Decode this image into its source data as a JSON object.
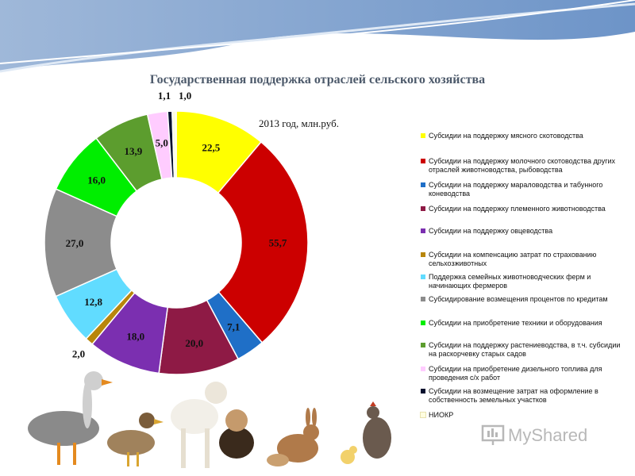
{
  "chart_data": {
    "type": "pie",
    "variant": "donut",
    "title": "Государственная поддержка отраслей сельского хозяйства",
    "subtitle": "2013 год, млн.руб.",
    "legend_position": "right",
    "labels": [
      "Субсидии на поддержку мясного скотоводства",
      "Субсидии на поддержку молочного скотоводства других отраслей животноводства, рыбоводства",
      "Субсидии на поддержку мараловодства и табунного коневодства",
      "Субсидии на поддержку племенного животноводства",
      "Субсидии на поддержку овцеводства",
      "Субсидии на компенсацию затрат по страхованию сельхозживотных",
      "Поддержка семейных животноводческих ферм и начинающих фермеров",
      "Субсидирование возмещения процентов по кредитам",
      "Субсидии на приобретение техники и оборудования",
      "Субсидии на поддержку растениеводства, в т.ч. субсидии на раскорчевку старых садов",
      "Субсидии на приобретение дизельного топлива для проведения с/х работ",
      "Субсидии на возмещение затрат на оформление в собственность земельных участков",
      "НИОКР"
    ],
    "values": [
      22.5,
      55.7,
      7.1,
      20.0,
      18.0,
      2.0,
      12.8,
      27.0,
      16.0,
      13.9,
      5.0,
      1.1,
      1.0
    ],
    "value_labels": [
      "22,5",
      "55,7",
      "7,1",
      "20,0",
      "18,0",
      "2,0",
      "12,8",
      "27,0",
      "16,0",
      "13,9",
      "5,0",
      "1,1",
      "1,0"
    ],
    "colors": [
      "#ffff00",
      "#cc0000",
      "#1f6fc7",
      "#8e1a45",
      "#7b2fb0",
      "#b8860b",
      "#61dcff",
      "#8c8c8c",
      "#00ee00",
      "#5c9d2e",
      "#ffccff",
      "#05102e",
      "#fffde0"
    ]
  },
  "watermark": {
    "text": "MyShared",
    "icon": "presentation-board-icon"
  },
  "decorations": {
    "header": "blue-wave-band",
    "footer": "farm-animals-photo"
  }
}
